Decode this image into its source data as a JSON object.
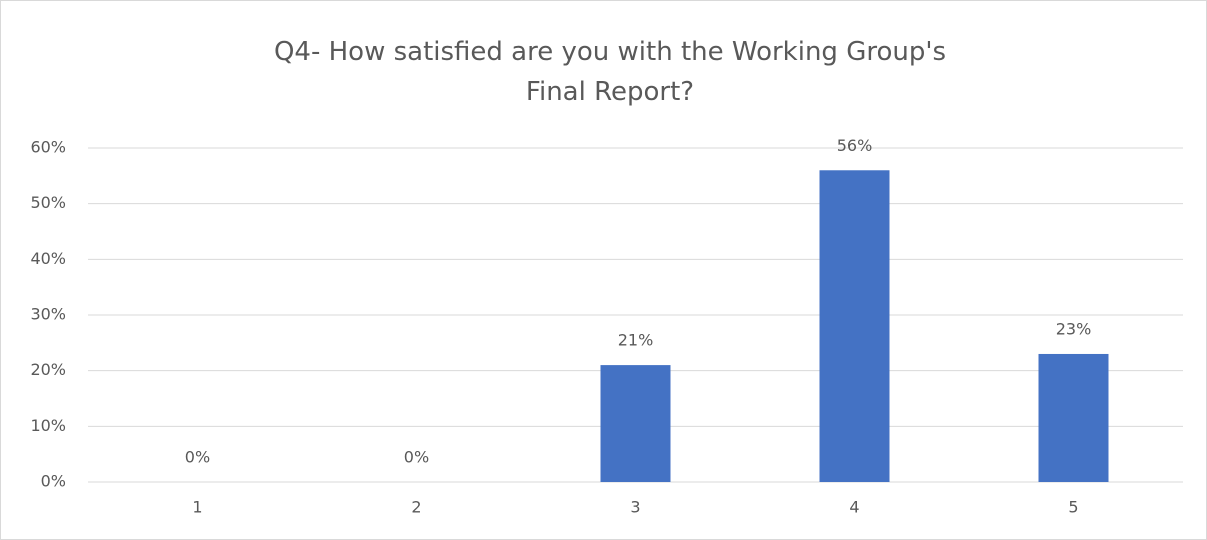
{
  "chart_data": {
    "type": "bar",
    "title": "Q4- How satisfied are you with the Working Group's Final Report?",
    "categories": [
      "1",
      "2",
      "3",
      "4",
      "5"
    ],
    "values": [
      0,
      0,
      21,
      56,
      23
    ],
    "value_labels": [
      "0%",
      "0%",
      "21%",
      "56%",
      "23%"
    ],
    "color": "#4472c4",
    "ylim": [
      0,
      60
    ],
    "yticks": [
      {
        "value": 0,
        "label": "0%"
      },
      {
        "value": 10,
        "label": "10%"
      },
      {
        "value": 20,
        "label": "20%"
      },
      {
        "value": 30,
        "label": "30%"
      },
      {
        "value": 40,
        "label": "40%"
      },
      {
        "value": 50,
        "label": "50%"
      },
      {
        "value": 60,
        "label": "60%"
      }
    ],
    "grid": true
  }
}
